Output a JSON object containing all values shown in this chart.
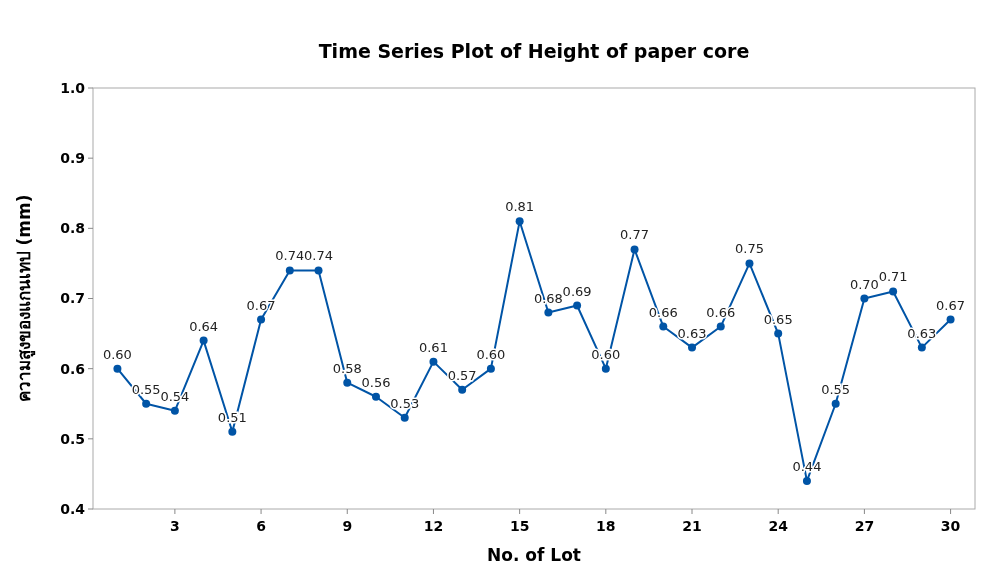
{
  "chart_data": {
    "type": "line",
    "title": "Time Series Plot of Height of paper core",
    "xlabel": "No. of Lot",
    "ylabel": "ความสูงของแกนเทป (mm)",
    "x": [
      1,
      2,
      3,
      4,
      5,
      6,
      7,
      8,
      9,
      10,
      11,
      12,
      13,
      14,
      15,
      16,
      17,
      18,
      19,
      20,
      21,
      22,
      23,
      24,
      25,
      26,
      27,
      28,
      29,
      30
    ],
    "series": [
      {
        "color": "#0054a6",
        "values": [
          0.6,
          0.55,
          0.54,
          0.64,
          0.51,
          0.67,
          0.74,
          0.74,
          0.58,
          0.56,
          0.53,
          0.61,
          0.57,
          0.6,
          0.81,
          0.68,
          0.69,
          0.6,
          0.77,
          0.66,
          0.63,
          0.66,
          0.75,
          0.65,
          0.44,
          0.55,
          0.7,
          0.71,
          0.63,
          0.67
        ],
        "value_labels": [
          "0.60",
          "0.55",
          "0.54",
          "0.64",
          "0.51",
          "0.67",
          "0.74",
          "0.74",
          "0.58",
          "0.56",
          "0.53",
          "0.61",
          "0.57",
          "0.60",
          "0.81",
          "0.68",
          "0.69",
          "0.60",
          "0.77",
          "0.66",
          "0.63",
          "0.66",
          "0.75",
          "0.65",
          "0.44",
          "0.55",
          "0.70",
          "0.71",
          "0.63",
          "0.67"
        ]
      }
    ],
    "xlim": [
      0.15,
      30.85
    ],
    "xticks": [
      3,
      6,
      9,
      12,
      15,
      18,
      21,
      24,
      27,
      30
    ],
    "ylim": [
      0.4,
      1.0
    ],
    "yticks": [
      {
        "value": 0.4,
        "label": "0.4"
      },
      {
        "value": 0.5,
        "label": "0.5"
      },
      {
        "value": 0.6,
        "label": "0.6"
      },
      {
        "value": 0.7,
        "label": "0.7"
      },
      {
        "value": 0.8,
        "label": "0.8"
      },
      {
        "value": 0.9,
        "label": "0.9"
      },
      {
        "value": 1.0,
        "label": "1.0"
      }
    ],
    "marker": "circle",
    "line_style": "solid",
    "grid": false
  }
}
